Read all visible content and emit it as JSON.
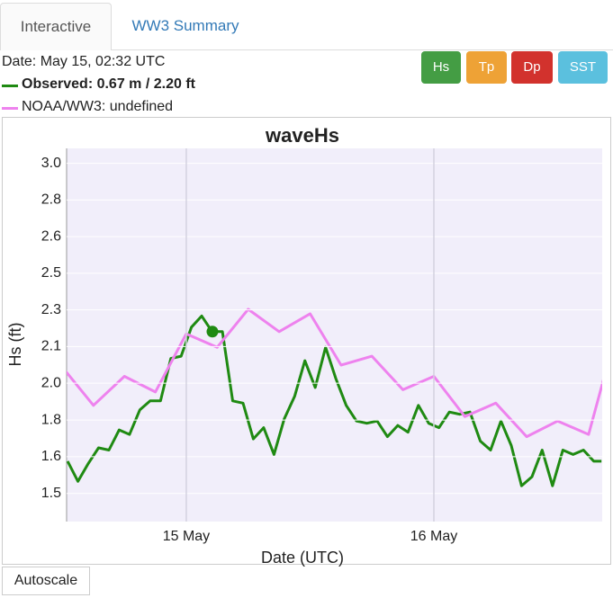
{
  "tabs": [
    "Interactive",
    "WW3 Summary"
  ],
  "info": {
    "date": "Date: May 15, 02:32 UTC",
    "observed": "Observed: 0.67 m / 2.20 ft",
    "model": "NOAA/WW3: undefined"
  },
  "buttons": [
    "Hs",
    "Tp",
    "Dp",
    "SST"
  ],
  "autoscale": "Autoscale",
  "chart_data": {
    "type": "line",
    "title": "waveHs",
    "x_label": "Date (UTC)",
    "y_label": "Hs (ft)",
    "xlim": [
      "May 14 12:24",
      "May 16 16:19"
    ],
    "xticks": [
      {
        "value": "May 15 00:00",
        "label": "15 May"
      },
      {
        "value": "May 16 00:00",
        "label": "16 May"
      }
    ],
    "ylim": [
      1.35,
      3.02
    ],
    "yticks": [
      {
        "value": 1.476,
        "label": "1.5"
      },
      {
        "value": 1.64,
        "label": "1.6"
      },
      {
        "value": 1.804,
        "label": "1.8"
      },
      {
        "value": 1.969,
        "label": "2.0"
      },
      {
        "value": 2.133,
        "label": "2.1"
      },
      {
        "value": 2.297,
        "label": "2.3"
      },
      {
        "value": 2.461,
        "label": "2.5"
      },
      {
        "value": 2.625,
        "label": "2.6"
      },
      {
        "value": 2.789,
        "label": "2.8"
      },
      {
        "value": 2.953,
        "label": "3.0"
      }
    ],
    "grid": true,
    "series": [
      {
        "color": "#1f8a12",
        "x": [
          "May 14 12:30",
          "May 14 13:30",
          "May 14 14:30",
          "May 14 15:30",
          "May 14 16:30",
          "May 14 17:30",
          "May 14 18:30",
          "May 14 19:30",
          "May 14 20:30",
          "May 14 21:30",
          "May 14 22:30",
          "May 14 23:30",
          "May 15 00:30",
          "May 15 01:30",
          "May 15 02:30",
          "May 15 03:30",
          "May 15 04:30",
          "May 15 05:30",
          "May 15 06:30",
          "May 15 07:30",
          "May 15 08:30",
          "May 15 09:30",
          "May 15 10:30",
          "May 15 11:30",
          "May 15 12:30",
          "May 15 13:30",
          "May 15 14:30",
          "May 15 15:30",
          "May 15 16:30",
          "May 15 17:30",
          "May 15 18:30",
          "May 15 19:30",
          "May 15 20:30",
          "May 15 21:30",
          "May 15 22:30",
          "May 15 23:30",
          "May 16 00:30",
          "May 16 01:30",
          "May 16 02:30",
          "May 16 03:30",
          "May 16 04:30",
          "May 16 05:30",
          "May 16 06:30",
          "May 16 07:30",
          "May 16 08:30",
          "May 16 09:30",
          "May 16 10:30",
          "May 16 11:30",
          "May 16 12:30",
          "May 16 13:30",
          "May 16 14:30",
          "May 16 15:30",
          "May 16 16:15"
        ],
        "values": [
          1.62,
          1.53,
          1.61,
          1.68,
          1.67,
          1.76,
          1.74,
          1.85,
          1.89,
          1.89,
          2.08,
          2.09,
          2.22,
          2.27,
          2.2,
          2.2,
          1.89,
          1.88,
          1.72,
          1.77,
          1.65,
          1.81,
          1.91,
          2.07,
          1.95,
          2.13,
          1.99,
          1.87,
          1.8,
          1.79,
          1.8,
          1.73,
          1.78,
          1.75,
          1.87,
          1.79,
          1.77,
          1.84,
          1.83,
          1.84,
          1.71,
          1.67,
          1.8,
          1.69,
          1.51,
          1.55,
          1.67,
          1.51,
          1.67,
          1.65,
          1.67,
          1.62,
          1.62
        ]
      },
      {
        "color": "#ee82ee",
        "x": [
          "May 14 12:00",
          "May 14 15:00",
          "May 14 18:00",
          "May 14 21:00",
          "May 15 00:00",
          "May 15 03:00",
          "May 15 06:00",
          "May 15 09:00",
          "May 15 12:00",
          "May 15 15:00",
          "May 15 18:00",
          "May 15 21:00",
          "May 16 00:00",
          "May 16 03:00",
          "May 16 06:00",
          "May 16 09:00",
          "May 16 12:00",
          "May 16 15:00",
          "May 16 18:00"
        ],
        "values": [
          2.04,
          1.87,
          2.0,
          1.93,
          2.19,
          2.13,
          2.3,
          2.2,
          2.28,
          2.05,
          2.09,
          1.94,
          2.0,
          1.82,
          1.88,
          1.73,
          1.8,
          1.74,
          2.25
        ]
      }
    ],
    "marker": {
      "x": "May 15 02:32",
      "value": 2.2,
      "color": "#1f8a12"
    }
  }
}
